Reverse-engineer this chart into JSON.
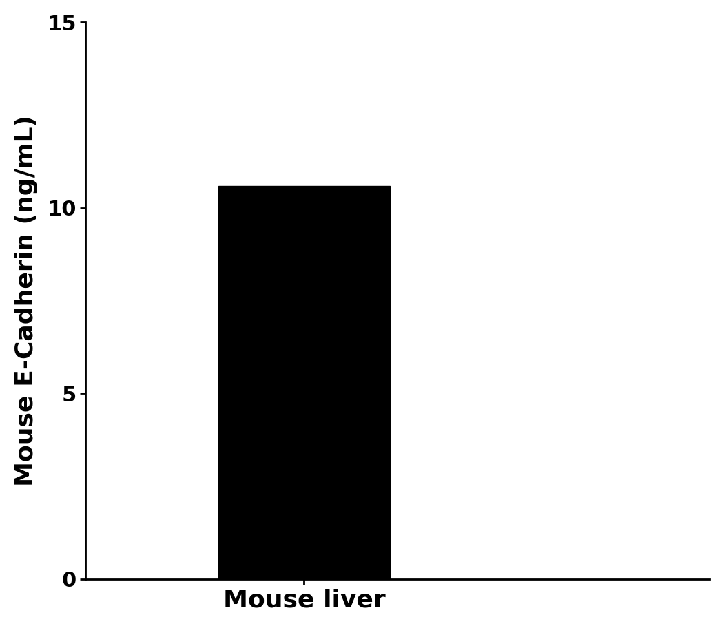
{
  "categories": [
    "Mouse liver"
  ],
  "values": [
    10.6
  ],
  "bar_color": "#000000",
  "ylabel": "Mouse E-Cadherin (ng/mL)",
  "xlabel": "",
  "ylim": [
    0,
    15
  ],
  "yticks": [
    0,
    5,
    10,
    15
  ],
  "xlim": [
    -0.7,
    1.3
  ],
  "bar_width": 0.55,
  "background_color": "#ffffff",
  "ylabel_fontsize": 26,
  "xtick_fontsize": 26,
  "ytick_fontsize": 22,
  "ylabel_fontweight": "bold",
  "xtick_fontweight": "bold",
  "ytick_fontweight": "bold"
}
